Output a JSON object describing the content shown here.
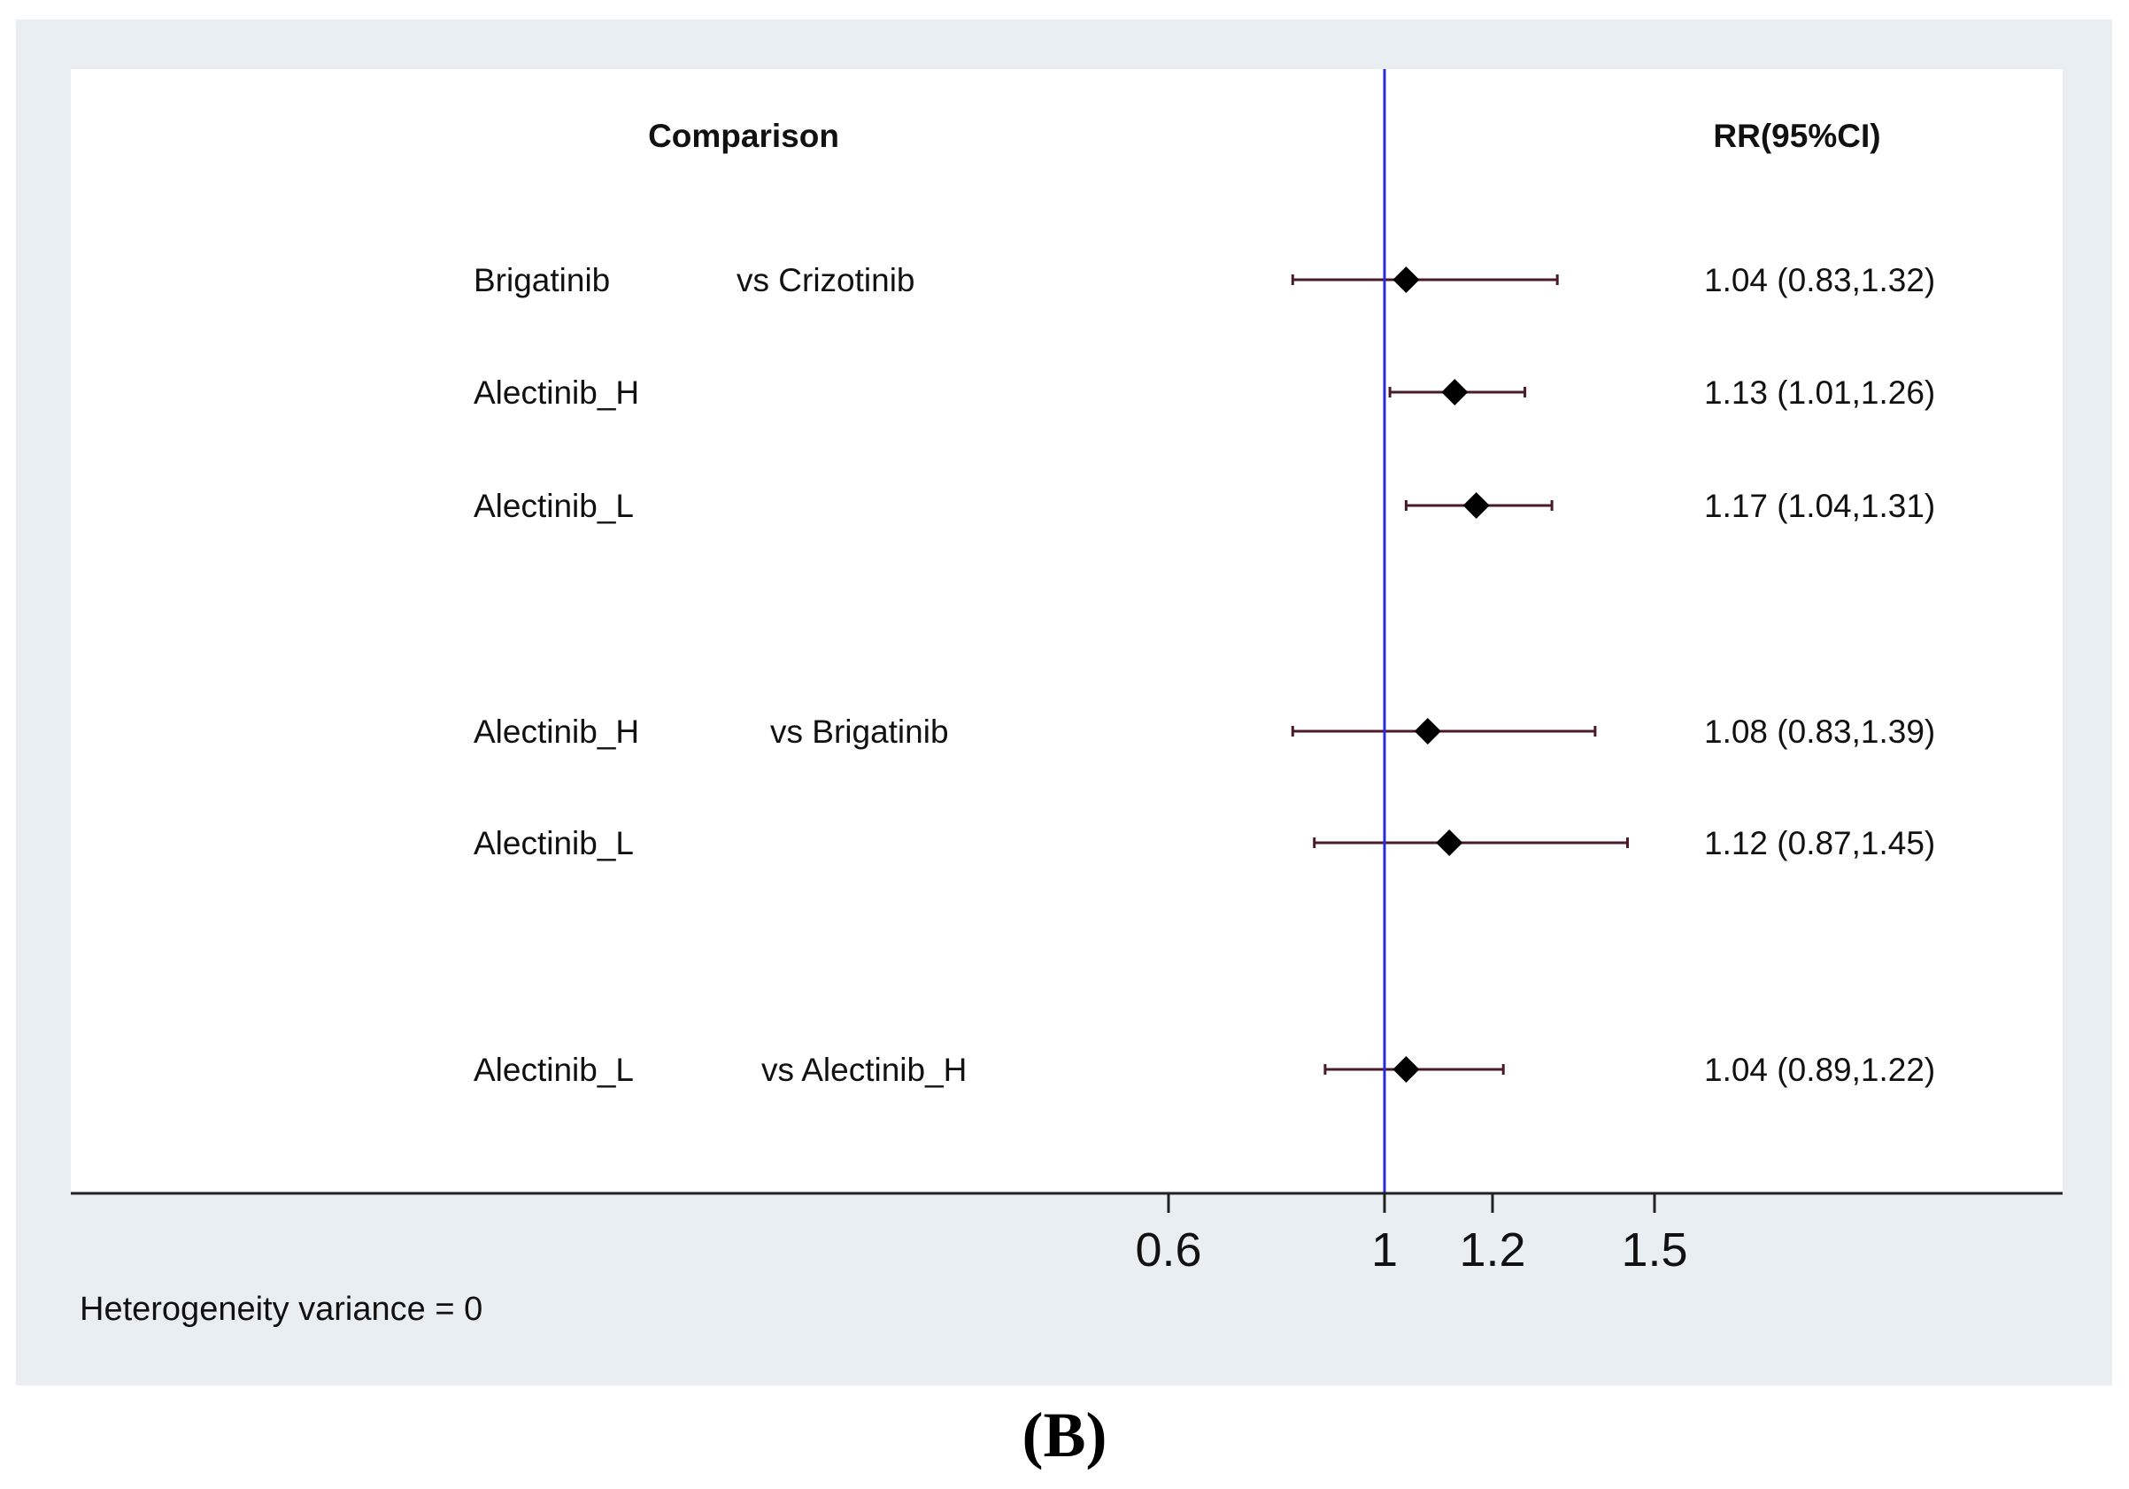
{
  "chart_data": {
    "type": "forest",
    "headers": {
      "comparison": "Comparison",
      "estimate": "RR(95%CI)"
    },
    "reference_value": 1,
    "x_ticks": [
      {
        "value": 0.6,
        "label": "0.6"
      },
      {
        "value": 1,
        "label": "1"
      },
      {
        "value": 1.2,
        "label": "1.2"
      },
      {
        "value": 1.5,
        "label": "1.5"
      }
    ],
    "rows": [
      {
        "treatment": "Brigatinib",
        "comparator": "vs Crizotinib",
        "rr": 1.04,
        "lower": 0.83,
        "upper": 1.32,
        "ci_text": "1.04 (0.83,1.32)"
      },
      {
        "treatment": "Alectinib_H",
        "comparator": "",
        "rr": 1.13,
        "lower": 1.01,
        "upper": 1.26,
        "ci_text": "1.13 (1.01,1.26)"
      },
      {
        "treatment": "Alectinib_L",
        "comparator": "",
        "rr": 1.17,
        "lower": 1.04,
        "upper": 1.31,
        "ci_text": "1.17 (1.04,1.31)"
      },
      {
        "treatment": "Alectinib_H",
        "comparator": "vs Brigatinib",
        "rr": 1.08,
        "lower": 0.83,
        "upper": 1.39,
        "ci_text": "1.08 (0.83,1.39)"
      },
      {
        "treatment": "Alectinib_L",
        "comparator": "",
        "rr": 1.12,
        "lower": 0.87,
        "upper": 1.45,
        "ci_text": "1.12 (0.87,1.45)"
      },
      {
        "treatment": "Alectinib_L",
        "comparator": "vs Alectinib_H",
        "rr": 1.04,
        "lower": 0.89,
        "upper": 1.22,
        "ci_text": "1.04 (0.89,1.22)"
      }
    ],
    "footnote": "Heterogeneity variance = 0",
    "colors": {
      "reference_line": "#2a2ad8",
      "ci_line": "#4a1a2a",
      "marker": "#000000",
      "background": "#e8eef1"
    }
  },
  "caption": "(B)"
}
